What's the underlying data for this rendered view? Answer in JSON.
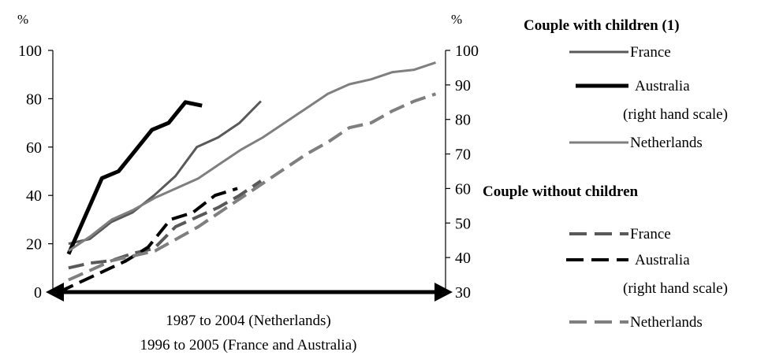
{
  "chart_data": {
    "type": "line",
    "left_axis": {
      "unit": "%",
      "ylim": [
        0,
        100
      ],
      "ticks": [
        "0",
        "20",
        "40",
        "60",
        "80",
        "100"
      ]
    },
    "right_axis": {
      "unit": "%",
      "ylim": [
        30,
        100
      ],
      "ticks": [
        "30",
        "40",
        "50",
        "60",
        "70",
        "80",
        "90",
        "100"
      ]
    },
    "xlabel_lines": [
      "1987 to 2004 (Netherlands)",
      "1996 to 2005  (France and Australia)"
    ],
    "legend": {
      "group1_title": "Couple with children (1)",
      "group2_title": "Couple without children",
      "entries": {
        "wc_france": "France",
        "wc_australia": "Australia",
        "wc_australia_note": "(right hand scale)",
        "wc_netherlands": "Netherlands",
        "woc_france": "France",
        "woc_australia": "Australia",
        "woc_australia_note": "(right hand scale)",
        "woc_netherlands": "Netherlands"
      }
    },
    "series": [
      {
        "key": "wc_france",
        "name": "France",
        "axis": "left",
        "dashed": false,
        "color": "#595959",
        "width": 3,
        "x": [
          0,
          1,
          2,
          3,
          4,
          5,
          6,
          7,
          8,
          9
        ],
        "y": [
          20,
          22,
          29,
          33,
          40,
          48,
          60,
          64,
          70,
          79
        ]
      },
      {
        "key": "wc_australia",
        "name": "Australia",
        "axis": "right",
        "dashed": false,
        "color": "#000000",
        "width": 5,
        "x": [
          0,
          1,
          2,
          3,
          4,
          5,
          6,
          7,
          8
        ],
        "y": [
          41,
          52,
          63,
          65,
          71,
          77,
          79,
          85,
          84
        ]
      },
      {
        "key": "wc_netherlands",
        "name": "Netherlands",
        "axis": "left",
        "dashed": false,
        "color": "#7f7f7f",
        "width": 3,
        "x": [
          0,
          1,
          2,
          3,
          4,
          5,
          6,
          7,
          8,
          9,
          10,
          11,
          12,
          13,
          14,
          15,
          16,
          17
        ],
        "y": [
          17,
          23,
          30,
          34,
          39,
          43,
          47,
          53,
          59,
          64,
          70,
          76,
          82,
          86,
          88,
          91,
          92,
          95
        ]
      },
      {
        "key": "woc_france",
        "name": "France",
        "axis": "left",
        "dashed": true,
        "color": "#595959",
        "width": 4,
        "x": [
          0,
          1,
          2,
          3,
          4,
          5,
          6,
          7,
          8,
          9
        ],
        "y": [
          10,
          12,
          13,
          16,
          18,
          27,
          31,
          35,
          40,
          46
        ]
      },
      {
        "key": "woc_australia",
        "name": "Australia",
        "axis": "right",
        "dashed": true,
        "color": "#000000",
        "width": 4,
        "x": [
          0,
          1,
          2,
          3,
          4,
          5,
          6,
          7,
          8
        ],
        "y": [
          30,
          33,
          36,
          39,
          43,
          51,
          53,
          58,
          60
        ]
      },
      {
        "key": "woc_netherlands",
        "name": "Netherlands",
        "axis": "left",
        "dashed": true,
        "color": "#7f7f7f",
        "width": 4,
        "x": [
          0,
          1,
          2,
          3,
          4,
          5,
          6,
          7,
          8,
          9,
          10,
          11,
          12,
          13,
          14,
          15,
          16,
          17
        ],
        "y": [
          5,
          9,
          13,
          15,
          17,
          22,
          27,
          33,
          39,
          45,
          51,
          57,
          62,
          68,
          70,
          75,
          79,
          82
        ]
      }
    ]
  }
}
